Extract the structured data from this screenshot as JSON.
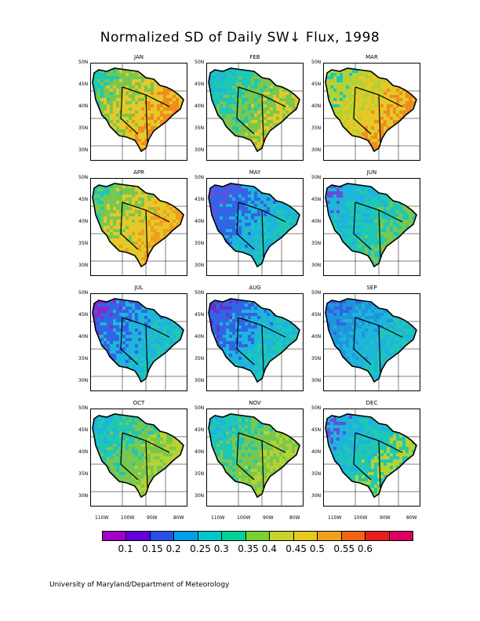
{
  "title": "Normalized SD of Daily SW↓ Flux, 1998",
  "footer": "University of Maryland/Department of Meteorology",
  "latitude_labels": [
    "50N",
    "45N",
    "40N",
    "35N",
    "30N"
  ],
  "longitude_labels": [
    "110W",
    "100W",
    "90W",
    "80W"
  ],
  "panels": [
    {
      "month": "JAN",
      "palette": [
        "#1ec8b4",
        "#78c850",
        "#e6c828",
        "#f08c1e",
        "#e61e1e"
      ]
    },
    {
      "month": "FEB",
      "palette": [
        "#1eb4dc",
        "#1ec8b4",
        "#78c850",
        "#e6c828",
        "#e63c1e"
      ]
    },
    {
      "month": "MAR",
      "palette": [
        "#1ec8b4",
        "#b4d232",
        "#e6c828",
        "#f08c1e",
        "#e61e1e"
      ]
    },
    {
      "month": "APR",
      "palette": [
        "#1ec8b4",
        "#78c850",
        "#e6c828",
        "#f0a01e",
        "#f0781e"
      ]
    },
    {
      "month": "MAY",
      "palette": [
        "#6450dc",
        "#3264e6",
        "#1eb4dc",
        "#1ec8b4",
        "#78c850"
      ]
    },
    {
      "month": "JUN",
      "palette": [
        "#6450dc",
        "#1eb4dc",
        "#1ec8b4",
        "#78c850",
        "#b4d232"
      ]
    },
    {
      "month": "JUL",
      "palette": [
        "#8c28c8",
        "#3264e6",
        "#1eb4dc",
        "#1ec8b4",
        "#78c850"
      ]
    },
    {
      "month": "AUG",
      "palette": [
        "#6432c8",
        "#3264e6",
        "#1eb4dc",
        "#1ec8b4",
        "#78c850"
      ]
    },
    {
      "month": "SEP",
      "palette": [
        "#3264e6",
        "#1e96dc",
        "#1eb4dc",
        "#1ec8b4",
        "#78c850"
      ]
    },
    {
      "month": "OCT",
      "palette": [
        "#1eb4dc",
        "#1ec8b4",
        "#78c850",
        "#b4d232",
        "#e6c828"
      ]
    },
    {
      "month": "NOV",
      "palette": [
        "#1eb4dc",
        "#1ec8b4",
        "#78c850",
        "#b4d232",
        "#e6c828"
      ]
    },
    {
      "month": "DEC",
      "palette": [
        "#6450dc",
        "#1eb4dc",
        "#1ec8b4",
        "#b4d232",
        "#e6c828"
      ]
    }
  ],
  "colorbar": {
    "colors": [
      "#a000c8",
      "#6400dc",
      "#2850e6",
      "#00a0e6",
      "#00c8c8",
      "#00d296",
      "#78d232",
      "#c8d228",
      "#e6c81e",
      "#f0a01e",
      "#f06414",
      "#e61e1e",
      "#dc0064"
    ],
    "labels": [
      "0.1",
      "0.15",
      "0.2",
      "0.25",
      "0.3",
      "0.35",
      "0.4",
      "0.45",
      "0.5",
      "0.55",
      "0.6"
    ]
  }
}
